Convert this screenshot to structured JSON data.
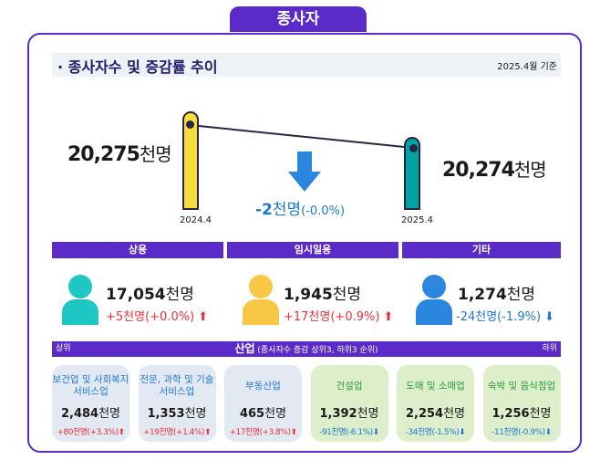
{
  "title": "종사자",
  "header": {
    "title": "· 종사자수 및 증감률 추이",
    "date": "2025.4월 기준"
  },
  "trend": {
    "prev": {
      "period": "2024.4",
      "value": "20,275",
      "unit": "천명",
      "color": "#f7dc3c"
    },
    "curr": {
      "period": "2025.4",
      "value": "20,274",
      "unit": "천명",
      "color": "#00a5a3"
    },
    "change": {
      "value": "-2",
      "unit": "천명",
      "pct": "(-0.0%)",
      "direction": "down"
    }
  },
  "status": [
    {
      "label": "상용",
      "value": "17,054",
      "unit": "천명",
      "change": "+5천명(+0.0%)",
      "direction": "up",
      "icon_color": "#1fc7c4"
    },
    {
      "label": "임시일용",
      "value": "1,945",
      "unit": "천명",
      "change": "+17천명(+0.9%)",
      "direction": "up",
      "icon_color": "#f9c746"
    },
    {
      "label": "기타",
      "value": "1,274",
      "unit": "천명",
      "change": "-24천명(-1.9%)",
      "direction": "down",
      "icon_color": "#2b86de"
    }
  ],
  "industry": {
    "title": "산업",
    "subtitle": "(종사자수 증감 상위3, 하위3 순위)",
    "left": "상위",
    "right": "하위",
    "items": [
      {
        "name": "보건업 및 사회복지 서비스업",
        "value": "2,484",
        "unit": "천명",
        "change": "+80천명(+3.3%)",
        "direction": "up"
      },
      {
        "name": "전문, 과학 및 기술 서비스업",
        "value": "1,353",
        "unit": "천명",
        "change": "+19천명(+1.4%)",
        "direction": "up"
      },
      {
        "name": "부동산업",
        "value": "465",
        "unit": "천명",
        "change": "+17천명(+3.8%)",
        "direction": "up"
      },
      {
        "name": "건설업",
        "value": "1,392",
        "unit": "천명",
        "change": "-91천명(-6.1%)",
        "direction": "down"
      },
      {
        "name": "도매 및 소매업",
        "value": "2,254",
        "unit": "천명",
        "change": "-34천명(-1.5%)",
        "direction": "down"
      },
      {
        "name": "숙박 및 음식점업",
        "value": "1,256",
        "unit": "천명",
        "change": "-11천명(-0.9%)",
        "direction": "down"
      }
    ]
  }
}
